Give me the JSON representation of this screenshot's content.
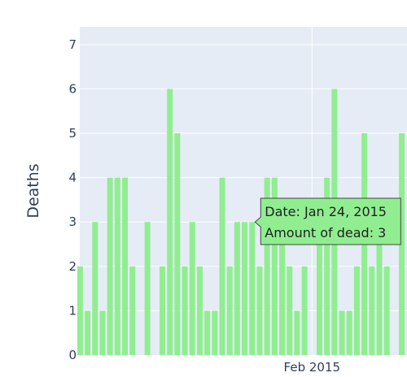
{
  "chart_data": {
    "type": "bar",
    "ylabel": "Deaths",
    "ylim": [
      0,
      7.4
    ],
    "y_ticks": [
      0,
      1,
      2,
      3,
      4,
      5,
      6,
      7
    ],
    "x_tick_labels": [
      {
        "date": "2015-02-01",
        "label": "Feb 2015"
      }
    ],
    "x_range": [
      "2015-01-01",
      "2015-02-17"
    ],
    "grid": true,
    "series": [
      {
        "x": [
          "2015-01-01",
          "2015-01-02",
          "2015-01-03",
          "2015-01-04",
          "2015-01-05",
          "2015-01-06",
          "2015-01-07",
          "2015-01-08",
          "2015-01-09",
          "2015-01-10",
          "2015-01-11",
          "2015-01-12",
          "2015-01-13",
          "2015-01-14",
          "2015-01-15",
          "2015-01-16",
          "2015-01-17",
          "2015-01-18",
          "2015-01-19",
          "2015-01-20",
          "2015-01-21",
          "2015-01-22",
          "2015-01-23",
          "2015-01-24",
          "2015-01-25",
          "2015-01-26",
          "2015-01-27",
          "2015-01-28",
          "2015-01-29",
          "2015-01-30",
          "2015-01-31",
          "2015-02-01",
          "2015-02-02",
          "2015-02-03",
          "2015-02-04",
          "2015-02-05",
          "2015-02-06",
          "2015-02-07",
          "2015-02-08",
          "2015-02-09",
          "2015-02-10",
          "2015-02-11",
          "2015-02-12",
          "2015-02-13",
          "2015-02-14",
          "2015-02-15",
          "2015-02-16"
        ],
        "values": [
          2,
          1,
          3,
          1,
          4,
          4,
          4,
          2,
          0,
          3,
          0,
          2,
          6,
          5,
          2,
          3,
          2,
          1,
          1,
          4,
          2,
          3,
          3,
          3,
          2,
          4,
          4,
          3,
          2,
          1,
          2,
          0,
          3,
          4,
          6,
          1,
          1,
          2,
          5,
          2,
          3,
          2,
          0,
          5,
          0,
          0,
          5
        ]
      }
    ],
    "bar_color": "#90ee90",
    "tooltip": {
      "date_line": "Date: Jan 24, 2015",
      "amount_line": "Amount of dead: 3",
      "target_date": "2015-01-24"
    }
  }
}
